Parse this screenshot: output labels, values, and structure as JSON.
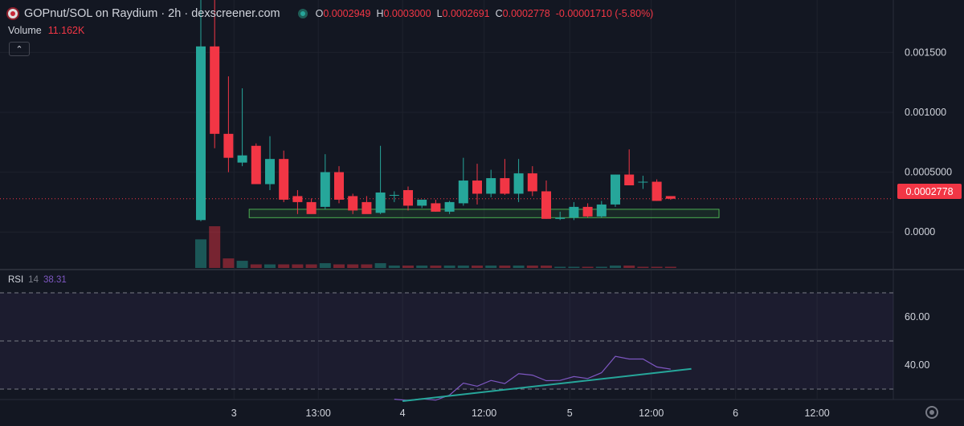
{
  "header": {
    "title": "GOPnut/SOL on Raydium · 2h · dexscreener.com",
    "ohlc": [
      {
        "key": "O",
        "value": "0.0002949"
      },
      {
        "key": "H",
        "value": "0.0003000"
      },
      {
        "key": "L",
        "value": "0.0002691"
      },
      {
        "key": "C",
        "value": "0.0002778"
      }
    ],
    "change": "-0.00001710 (-5.80%)"
  },
  "volume": {
    "label": "Volume",
    "value": "11.162K"
  },
  "rsi": {
    "label": "RSI",
    "period": "14",
    "value": "38.31"
  },
  "colors": {
    "up": "#26a69a",
    "down": "#f23645",
    "rsi": "#7e57c2",
    "trend": "#26a69a",
    "bg": "#131722"
  },
  "icons": {
    "logo": "gopnut-token-icon",
    "status": "live-dot-icon",
    "collapse": "chevron-up-icon",
    "settings": "gear-icon"
  },
  "chart_data": [
    {
      "type": "candlestick",
      "price_ticks": [
        "0.001500",
        "0.001000",
        "0.0005000",
        "0.0000"
      ],
      "price_tick_values": [
        0.0015,
        0.001,
        0.0005,
        0.0
      ],
      "price_range": [
        -0.0003,
        0.00175
      ],
      "last_price_label": "0.0002778",
      "last_price": 0.0002778,
      "x_ticks": [
        "3",
        "13:00",
        "4",
        "12:00",
        "5",
        "12:00",
        "6",
        "12:00"
      ],
      "x_tick_index": [
        2.4,
        8.5,
        14.6,
        20.5,
        26.7,
        32.6,
        38.7,
        44.6
      ],
      "candles": [
        {
          "o": 0.0001,
          "h": 0.0029,
          "l": 9e-05,
          "c": 0.00155
        },
        {
          "o": 0.00155,
          "h": 0.0022,
          "l": 0.0007,
          "c": 0.00082
        },
        {
          "o": 0.00082,
          "h": 0.0013,
          "l": 0.0005,
          "c": 0.00062
        },
        {
          "o": 0.00058,
          "h": 0.0012,
          "l": 0.00055,
          "c": 0.00064
        },
        {
          "o": 0.00072,
          "h": 0.00074,
          "l": 0.00042,
          "c": 0.0004
        },
        {
          "o": 0.0004,
          "h": 0.0008,
          "l": 0.00035,
          "c": 0.00061
        },
        {
          "o": 0.00061,
          "h": 0.00068,
          "l": 0.00025,
          "c": 0.00027
        },
        {
          "o": 0.0003,
          "h": 0.00035,
          "l": 0.00015,
          "c": 0.00025
        },
        {
          "o": 0.00025,
          "h": 0.00028,
          "l": 0.00017,
          "c": 0.00015
        },
        {
          "o": 0.00021,
          "h": 0.00065,
          "l": 0.00019,
          "c": 0.0005
        },
        {
          "o": 0.0005,
          "h": 0.00055,
          "l": 0.00024,
          "c": 0.00027
        },
        {
          "o": 0.0003,
          "h": 0.00032,
          "l": 0.00015,
          "c": 0.00018
        },
        {
          "o": 0.00025,
          "h": 0.0003,
          "l": 0.00016,
          "c": 0.00015
        },
        {
          "o": 0.00016,
          "h": 0.00072,
          "l": 0.00015,
          "c": 0.00033
        },
        {
          "o": 0.00031,
          "h": 0.00034,
          "l": 0.00025,
          "c": 0.00031
        },
        {
          "o": 0.00035,
          "h": 0.00038,
          "l": 0.00018,
          "c": 0.00022
        },
        {
          "o": 0.00022,
          "h": 0.00025,
          "l": 0.0002,
          "c": 0.00027
        },
        {
          "o": 0.00024,
          "h": 0.00027,
          "l": 0.00017,
          "c": 0.00017
        },
        {
          "o": 0.00017,
          "h": 0.00026,
          "l": 0.00015,
          "c": 0.00025
        },
        {
          "o": 0.00024,
          "h": 0.00062,
          "l": 0.00022,
          "c": 0.00043
        },
        {
          "o": 0.00043,
          "h": 0.00057,
          "l": 0.00023,
          "c": 0.00032
        },
        {
          "o": 0.00032,
          "h": 0.00052,
          "l": 0.00029,
          "c": 0.00045
        },
        {
          "o": 0.00045,
          "h": 0.00061,
          "l": 0.00031,
          "c": 0.00032
        },
        {
          "o": 0.00032,
          "h": 0.00061,
          "l": 0.00025,
          "c": 0.00049
        },
        {
          "o": 0.00049,
          "h": 0.00055,
          "l": 0.0003,
          "c": 0.00034
        },
        {
          "o": 0.00034,
          "h": 0.00043,
          "l": 0.00011,
          "c": 0.00011
        },
        {
          "o": 0.00011,
          "h": 0.00017,
          "l": 0.0001,
          "c": 0.00012
        },
        {
          "o": 0.00012,
          "h": 0.00025,
          "l": 0.0001,
          "c": 0.00021
        },
        {
          "o": 0.00021,
          "h": 0.00024,
          "l": 0.00012,
          "c": 0.00013
        },
        {
          "o": 0.00013,
          "h": 0.00026,
          "l": 0.00012,
          "c": 0.00023
        },
        {
          "o": 0.00023,
          "h": 0.00048,
          "l": 0.00021,
          "c": 0.00048
        },
        {
          "o": 0.00048,
          "h": 0.00069,
          "l": 0.00039,
          "c": 0.00039
        },
        {
          "o": 0.00042,
          "h": 0.00047,
          "l": 0.00036,
          "c": 0.00042
        },
        {
          "o": 0.00042,
          "h": 0.00044,
          "l": 0.00026,
          "c": 0.00026
        },
        {
          "o": 0.0003,
          "h": 0.0003,
          "l": 0.000269,
          "c": 0.0002778
        }
      ],
      "support_zone": {
        "from_index": 3.5,
        "to_index": 37.5,
        "low": 0.00012,
        "high": 0.00019
      }
    },
    {
      "type": "bar",
      "title": "Volume",
      "values": [
        24,
        35,
        8,
        6,
        3,
        3,
        3,
        3,
        3,
        4,
        3,
        3,
        3,
        4,
        2,
        2,
        2,
        2,
        2,
        2,
        2,
        2,
        2,
        2,
        2,
        2,
        1,
        1,
        1,
        1,
        2,
        2,
        1,
        1,
        1
      ],
      "directions": [
        "up",
        "down",
        "down",
        "up",
        "down",
        "up",
        "down",
        "down",
        "down",
        "up",
        "down",
        "down",
        "down",
        "up",
        "up",
        "down",
        "up",
        "down",
        "up",
        "up",
        "down",
        "up",
        "down",
        "up",
        "down",
        "down",
        "up",
        "up",
        "down",
        "up",
        "up",
        "down",
        "down",
        "down",
        "down"
      ]
    },
    {
      "type": "line",
      "title": "RSI",
      "y_ticks": [
        "60.00",
        "40.00"
      ],
      "y_tick_values": [
        60,
        40
      ],
      "y_range": [
        26,
        79
      ],
      "band": [
        30,
        70
      ],
      "values": [
        null,
        null,
        null,
        null,
        null,
        null,
        null,
        null,
        null,
        null,
        null,
        null,
        null,
        null,
        25.8,
        25.3,
        26.0,
        25.4,
        27.5,
        32.5,
        31.2,
        33.6,
        32.3,
        36.4,
        35.8,
        33.5,
        33.6,
        35.2,
        34.4,
        36.8,
        43.6,
        42.5,
        42.5,
        39.2,
        38.31
      ],
      "trendline": {
        "from": [
          14.6,
          25.0
        ],
        "to": [
          35.5,
          38.4
        ]
      }
    }
  ]
}
